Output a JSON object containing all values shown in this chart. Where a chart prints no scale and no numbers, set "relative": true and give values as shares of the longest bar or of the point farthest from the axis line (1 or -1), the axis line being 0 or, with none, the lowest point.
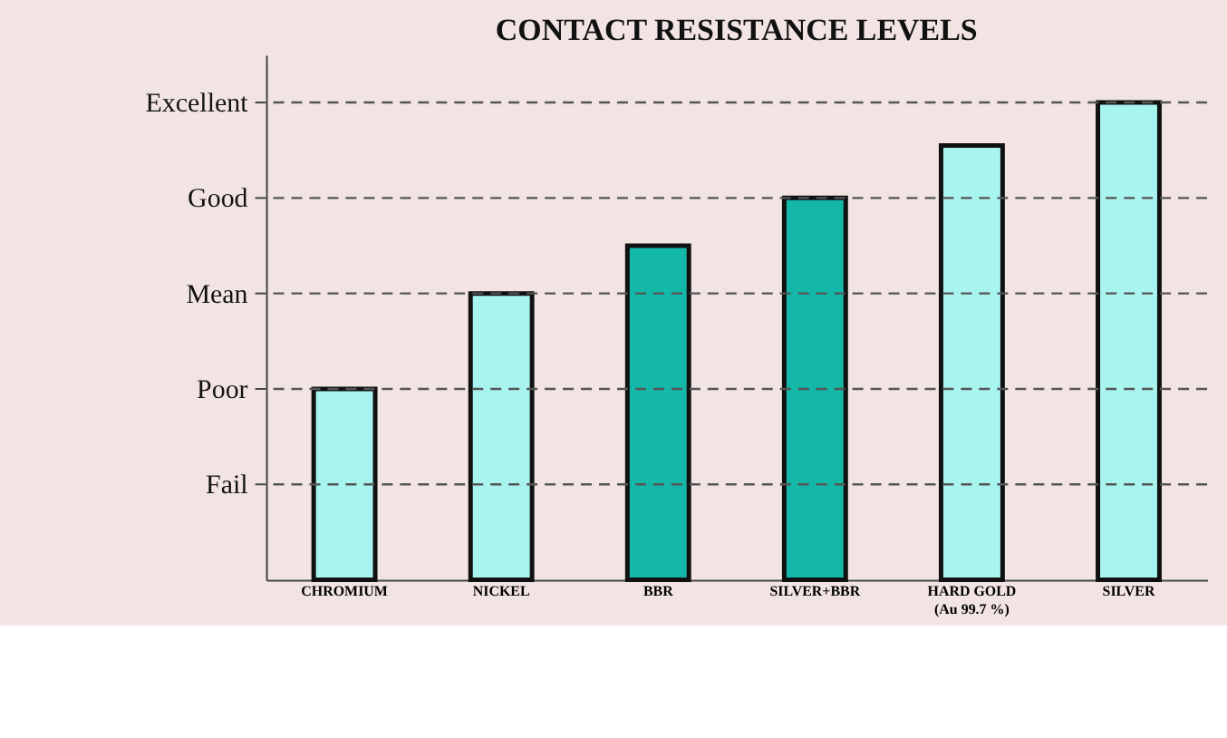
{
  "chart_data": {
    "type": "bar",
    "title": "CONTACT RESISTANCE LEVELS",
    "relative": true,
    "categories": [
      "CHROMIUM",
      "NICKEL",
      "BBR",
      "SILVER+BBR",
      "HARD GOLD\n(Au 99.7 %)",
      "SILVER"
    ],
    "values": [
      0.4,
      0.6,
      0.7,
      0.8,
      0.91,
      1.0
    ],
    "colors": [
      "#a8f5f0",
      "#a8f5f0",
      "#14b8a8",
      "#14b8a8",
      "#a8f5f0",
      "#a8f5f0"
    ],
    "ref_lines": [
      {
        "axis": "y",
        "value": 0.2,
        "label": "Fail",
        "line_style": "dashed"
      },
      {
        "axis": "y",
        "value": 0.4,
        "label": "Poor",
        "line_style": "dashed"
      },
      {
        "axis": "y",
        "value": 0.6,
        "label": "Mean",
        "line_style": "dashed"
      },
      {
        "axis": "y",
        "value": 0.8,
        "label": "Good",
        "line_style": "dashed"
      },
      {
        "axis": "y",
        "value": 1.0,
        "label": "Excellent",
        "line_style": "dashed"
      }
    ]
  }
}
